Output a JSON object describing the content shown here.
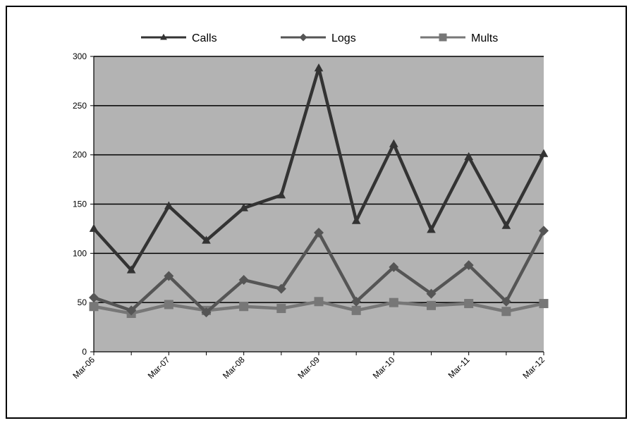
{
  "chart_data": {
    "type": "line",
    "title": "",
    "xlabel": "",
    "ylabel": "",
    "ylim": [
      0,
      300
    ],
    "yticks": [
      0,
      50,
      100,
      150,
      200,
      250,
      300
    ],
    "grid": true,
    "legend_position": "top",
    "plot_background": "#b3b3b3",
    "x_tick_labels": [
      "Mar-06",
      "Mar-07",
      "Mar-08",
      "Mar-09",
      "Mar-10",
      "Mar-11",
      "Mar-12"
    ],
    "series": [
      {
        "name": "Calls",
        "marker": "triangle",
        "color": "#333333",
        "values": [
          125,
          83,
          148,
          113,
          146,
          159,
          288,
          133,
          211,
          124,
          198,
          128,
          201
        ]
      },
      {
        "name": "Logs",
        "marker": "diamond",
        "color": "#555555",
        "values": [
          55,
          42,
          77,
          40,
          73,
          64,
          121,
          51,
          86,
          59,
          88,
          51,
          123
        ]
      },
      {
        "name": "Mults",
        "marker": "square",
        "color": "#777777",
        "values": [
          46,
          39,
          48,
          42,
          46,
          44,
          51,
          42,
          50,
          47,
          49,
          41,
          49
        ]
      }
    ]
  }
}
